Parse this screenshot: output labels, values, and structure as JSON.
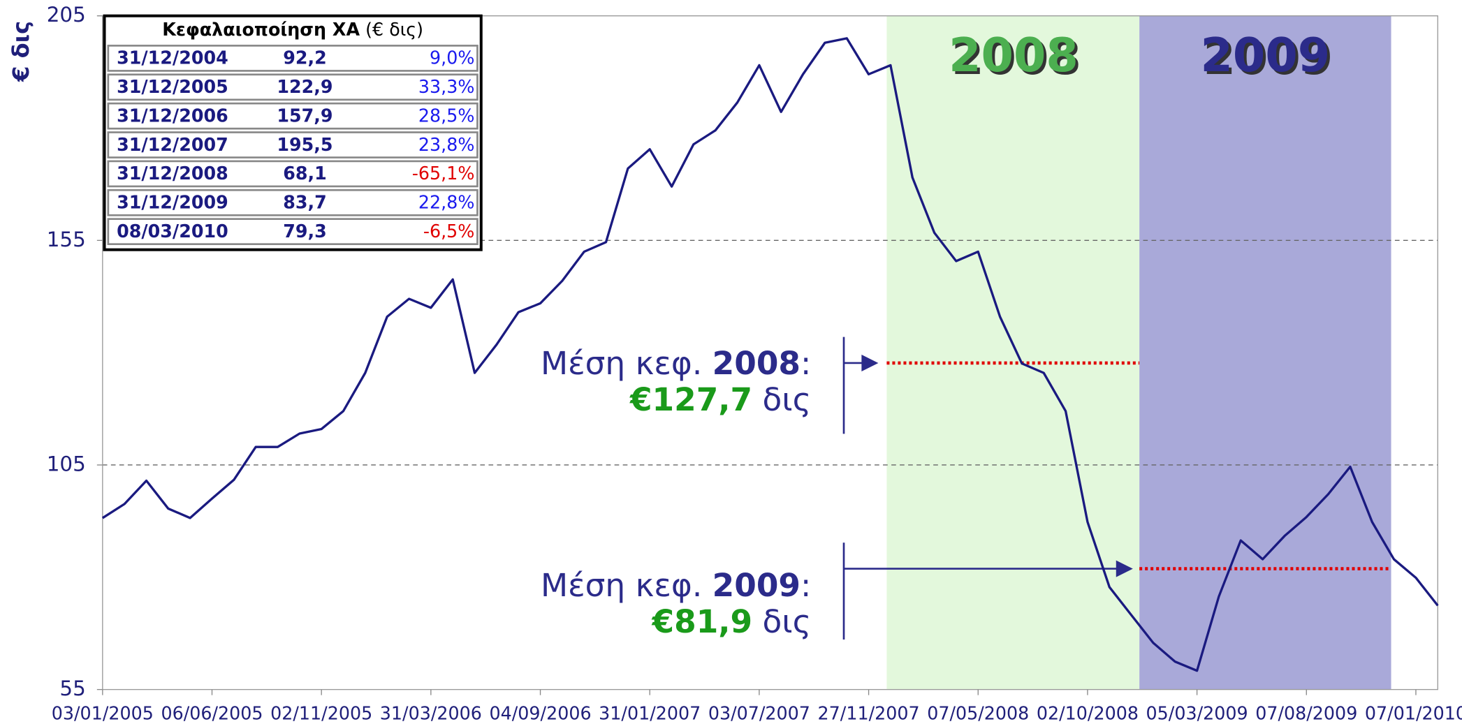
{
  "chart_data": {
    "type": "line",
    "y_label": "€ δις",
    "ylim": [
      55,
      205
    ],
    "yticks": [
      55,
      105,
      155,
      205
    ],
    "grid": true,
    "categories": [
      "03/01/2005",
      null,
      null,
      null,
      null,
      "06/06/2005",
      null,
      null,
      null,
      null,
      "02/11/2005",
      null,
      null,
      null,
      null,
      "31/03/2006",
      null,
      null,
      null,
      null,
      "04/09/2006",
      null,
      null,
      null,
      null,
      "31/01/2007",
      null,
      null,
      null,
      null,
      "03/07/2007",
      null,
      null,
      null,
      null,
      "27/11/2007",
      null,
      null,
      null,
      null,
      "07/05/2008",
      null,
      null,
      null,
      null,
      "02/10/2008",
      null,
      null,
      null,
      null,
      "05/03/2009",
      null,
      null,
      null,
      null,
      "07/08/2009",
      null,
      null,
      null,
      null,
      "07/01/2010",
      null
    ],
    "series": [
      {
        "name": "Κεφαλαιοποίηση ΧΑ",
        "color": "#1a1a80",
        "values": [
          93.2,
          96.3,
          101.5,
          95.3,
          93.2,
          97.5,
          101.7,
          109,
          109,
          112,
          113,
          117,
          125.5,
          138,
          142,
          140,
          146.3,
          125.5,
          131.8,
          139,
          141,
          146,
          152.5,
          154.6,
          171,
          175.3,
          167,
          176.4,
          179.5,
          185.7,
          194,
          183.6,
          192,
          199,
          200,
          192,
          194,
          169,
          156.7,
          150.4,
          152.5,
          138,
          127.6,
          125.5,
          117,
          92.3,
          77.8,
          71.6,
          65.4,
          61.2,
          59.2,
          75.7,
          88.2,
          84,
          89.2,
          93.4,
          98.5,
          104.6,
          92.3,
          84,
          79.9,
          73.7
        ]
      }
    ],
    "bands": [
      {
        "label": "2008",
        "color": "#e3f8dc",
        "text_color": "#4caf50"
      },
      {
        "label": "2009",
        "color": "#a9a9d9",
        "text_color": "#2b2b8a"
      }
    ],
    "averages": [
      {
        "prefix": "Μέση κεφ.",
        "year": "2008",
        "suffix": ":",
        "value": 127.7,
        "value_label": "€127,7",
        "unit": "δις",
        "color": "#e00000"
      },
      {
        "prefix": "Μέση κεφ.",
        "year": "2009",
        "suffix": ":",
        "value": 81.9,
        "value_label": "€81,9",
        "unit": "δις",
        "color": "#e00000"
      }
    ],
    "table": {
      "title": "Κεφαλαιοποίηση ΧΑ",
      "title_unit": "(€ δις)",
      "rows": [
        [
          "31/12/2004",
          "92,2",
          "9,0%"
        ],
        [
          "31/12/2005",
          "122,9",
          "33,3%"
        ],
        [
          "31/12/2006",
          "157,9",
          "28,5%"
        ],
        [
          "31/12/2007",
          "195,5",
          "23,8%"
        ],
        [
          "31/12/2008",
          "68,1",
          "-65,1%"
        ],
        [
          "31/12/2009",
          "83,7",
          "22,8%"
        ],
        [
          "08/03/2010",
          "79,3",
          "-6,5%"
        ]
      ]
    }
  }
}
